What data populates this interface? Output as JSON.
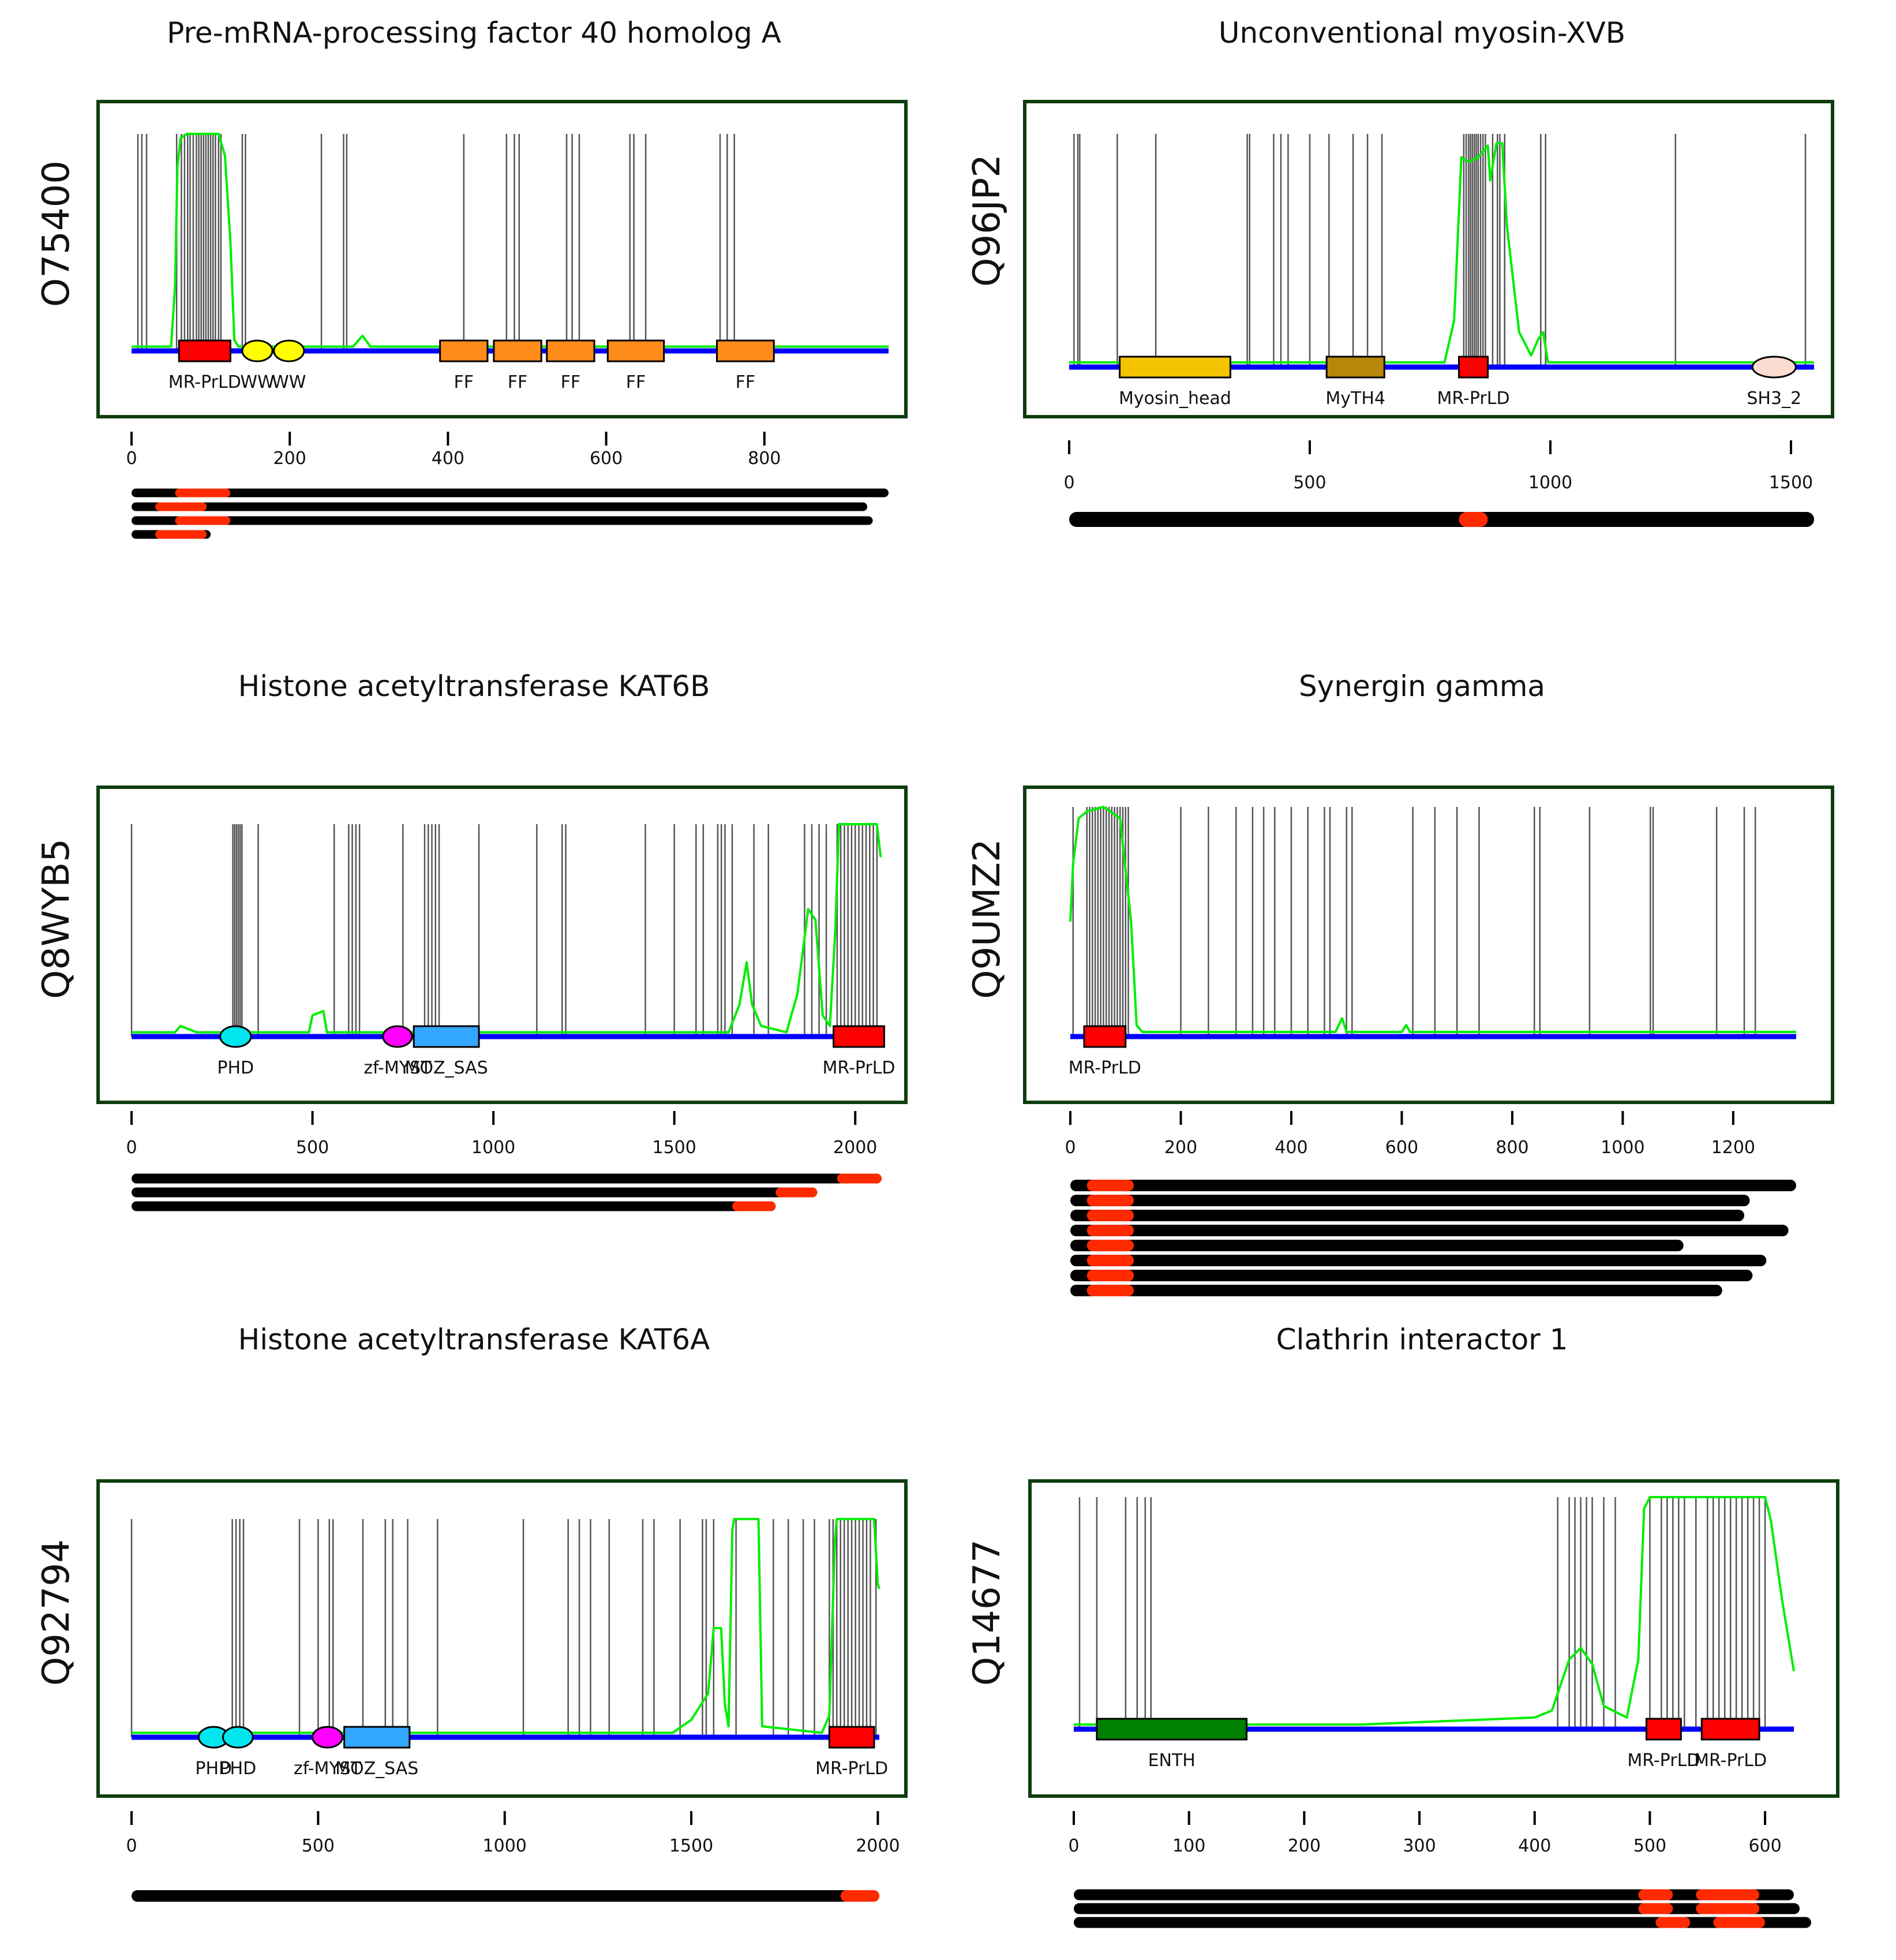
{
  "chart_data": [
    {
      "type": "domain-map",
      "uniprot_id": "O75400",
      "title": "Pre-mRNA-processing factor 40 homolog A",
      "length": 957,
      "xlim": [
        0,
        957
      ],
      "x_ticks": [
        0,
        200,
        400,
        600,
        800
      ],
      "y_range": [
        0,
        1
      ],
      "domains": [
        {
          "label": "MR-PrLD",
          "start": 60,
          "end": 125,
          "shape": "rect",
          "color": "#ff0000"
        },
        {
          "label": "WW",
          "start": 140,
          "end": 178,
          "shape": "ellipse",
          "color": "#ffff00"
        },
        {
          "label": "WW",
          "start": 180,
          "end": 218,
          "shape": "ellipse",
          "color": "#ffff00"
        },
        {
          "label": "FF",
          "start": 390,
          "end": 450,
          "shape": "rect",
          "color": "#ff8c1a"
        },
        {
          "label": "FF",
          "start": 458,
          "end": 518,
          "shape": "rect",
          "color": "#ff8c1a"
        },
        {
          "label": "FF",
          "start": 525,
          "end": 585,
          "shape": "rect",
          "color": "#ff8c1a"
        },
        {
          "label": "FF",
          "start": 602,
          "end": 673,
          "shape": "rect",
          "color": "#ff8c1a"
        },
        {
          "label": "FF",
          "start": 740,
          "end": 812,
          "shape": "rect",
          "color": "#ff8c1a"
        }
      ],
      "prion_score": [
        [
          0,
          0.02
        ],
        [
          50,
          0.02
        ],
        [
          55,
          0.3
        ],
        [
          58,
          0.85
        ],
        [
          62,
          0.98
        ],
        [
          70,
          1.0
        ],
        [
          110,
          1.0
        ],
        [
          118,
          0.9
        ],
        [
          125,
          0.5
        ],
        [
          130,
          0.05
        ],
        [
          135,
          0.02
        ],
        [
          280,
          0.02
        ],
        [
          292,
          0.07
        ],
        [
          302,
          0.02
        ],
        [
          957,
          0.02
        ]
      ],
      "motif_positions": [
        8,
        13,
        19,
        57,
        63,
        67,
        71,
        74,
        78,
        82,
        85,
        88,
        91,
        94,
        97,
        100,
        103,
        106,
        110,
        113,
        140,
        144,
        240,
        268,
        272,
        420,
        474,
        484,
        490,
        550,
        557,
        566,
        630,
        635,
        650,
        744,
        753,
        762
      ],
      "isoforms": [
        {
          "length": 957,
          "prld": [
            [
              55,
              125
            ]
          ]
        },
        {
          "length": 930,
          "prld": [
            [
              30,
              95
            ]
          ]
        },
        {
          "length": 937,
          "prld": [
            [
              55,
              125
            ]
          ]
        },
        {
          "length": 100,
          "prld": [
            [
              30,
              95
            ]
          ]
        }
      ]
    },
    {
      "type": "domain-map",
      "uniprot_id": "Q96JP2",
      "title": "Unconventional myosin-XVB",
      "length": 1548,
      "xlim": [
        0,
        1548
      ],
      "x_ticks": [
        0,
        500,
        1000,
        1500
      ],
      "y_range": [
        0,
        1
      ],
      "domains": [
        {
          "label": "Myosin_head",
          "start": 105,
          "end": 335,
          "shape": "rect",
          "color": "#f5c400"
        },
        {
          "label": "MyTH4",
          "start": 535,
          "end": 655,
          "shape": "rect",
          "color": "#b8860b"
        },
        {
          "label": "MR-PrLD",
          "start": 810,
          "end": 870,
          "shape": "rect",
          "color": "#ff0000"
        },
        {
          "label": "SH3_2",
          "start": 1420,
          "end": 1510,
          "shape": "ellipse",
          "color": "#fcdcd0"
        }
      ],
      "prion_score": [
        [
          0,
          0.02
        ],
        [
          780,
          0.02
        ],
        [
          800,
          0.2
        ],
        [
          815,
          0.9
        ],
        [
          830,
          0.88
        ],
        [
          850,
          0.9
        ],
        [
          870,
          0.95
        ],
        [
          875,
          0.8
        ],
        [
          888,
          0.96
        ],
        [
          900,
          0.96
        ],
        [
          910,
          0.6
        ],
        [
          935,
          0.15
        ],
        [
          960,
          0.05
        ],
        [
          975,
          0.12
        ],
        [
          985,
          0.15
        ],
        [
          995,
          0.02
        ],
        [
          1548,
          0.02
        ]
      ],
      "motif_positions": [
        10,
        18,
        22,
        100,
        180,
        370,
        375,
        425,
        440,
        455,
        500,
        540,
        590,
        620,
        650,
        820,
        825,
        830,
        834,
        838,
        842,
        846,
        850,
        855,
        860,
        865,
        880,
        890,
        895,
        905,
        980,
        990,
        1260,
        1530
      ],
      "isoforms": [
        {
          "length": 1548,
          "prld": [
            [
              810,
              870
            ]
          ]
        }
      ]
    },
    {
      "type": "domain-map",
      "uniprot_id": "Q8WYB5",
      "title": "Histone acetyltransferase KAT6B",
      "length": 2073,
      "xlim": [
        0,
        2073
      ],
      "x_ticks": [
        0,
        500,
        1000,
        1500,
        2000
      ],
      "y_range": [
        0,
        1
      ],
      "domains": [
        {
          "label": "PHD",
          "start": 245,
          "end": 330,
          "shape": "ellipse",
          "color": "#00e5ee"
        },
        {
          "label": "zf-MYST",
          "start": 695,
          "end": 775,
          "shape": "ellipse",
          "color": "#ff00ff"
        },
        {
          "label": "MOZ_SAS",
          "start": 780,
          "end": 960,
          "shape": "rect",
          "color": "#33a6ff"
        },
        {
          "label": "MR-PrLD",
          "start": 1940,
          "end": 2080,
          "shape": "rect",
          "color": "#ff0000"
        }
      ],
      "prion_score": [
        [
          0,
          0.02
        ],
        [
          120,
          0.02
        ],
        [
          135,
          0.05
        ],
        [
          180,
          0.02
        ],
        [
          490,
          0.02
        ],
        [
          500,
          0.1
        ],
        [
          530,
          0.12
        ],
        [
          540,
          0.02
        ],
        [
          1650,
          0.02
        ],
        [
          1680,
          0.15
        ],
        [
          1700,
          0.35
        ],
        [
          1715,
          0.15
        ],
        [
          1740,
          0.05
        ],
        [
          1810,
          0.02
        ],
        [
          1840,
          0.2
        ],
        [
          1870,
          0.6
        ],
        [
          1890,
          0.55
        ],
        [
          1910,
          0.1
        ],
        [
          1930,
          0.05
        ],
        [
          1945,
          0.5
        ],
        [
          1955,
          1.0
        ],
        [
          2060,
          1.0
        ],
        [
          2070,
          0.85
        ],
        [
          2073,
          0.85
        ]
      ],
      "motif_positions": [
        0,
        280,
        285,
        290,
        295,
        300,
        305,
        350,
        560,
        600,
        610,
        620,
        630,
        750,
        810,
        820,
        830,
        840,
        850,
        960,
        1120,
        1190,
        1200,
        1420,
        1500,
        1560,
        1580,
        1620,
        1630,
        1640,
        1660,
        1720,
        1760,
        1860,
        1880,
        1900,
        1920,
        1950,
        1960,
        1970,
        1980,
        1990,
        2000,
        2010,
        2020,
        2030,
        2040,
        2050,
        2060
      ],
      "isoforms": [
        {
          "length": 2073,
          "prld": [
            [
              1950,
              2073
            ]
          ]
        },
        {
          "length": 1895,
          "prld": [
            [
              1780,
              1895
            ]
          ]
        },
        {
          "length": 1780,
          "prld": [
            [
              1660,
              1780
            ]
          ]
        }
      ]
    },
    {
      "type": "domain-map",
      "uniprot_id": "Q9UMZ2",
      "title": "Synergin gamma",
      "length": 1314,
      "xlim": [
        0,
        1314
      ],
      "x_ticks": [
        0,
        200,
        400,
        600,
        800,
        1000,
        1200
      ],
      "y_range": [
        0,
        1
      ],
      "domains": [
        {
          "label": "MR-PrLD",
          "start": 25,
          "end": 100,
          "shape": "rect",
          "color": "#ff0000"
        }
      ],
      "prion_score": [
        [
          0,
          0.5
        ],
        [
          5,
          0.75
        ],
        [
          15,
          0.95
        ],
        [
          30,
          0.98
        ],
        [
          60,
          1.0
        ],
        [
          90,
          0.95
        ],
        [
          110,
          0.5
        ],
        [
          120,
          0.05
        ],
        [
          130,
          0.02
        ],
        [
          480,
          0.02
        ],
        [
          492,
          0.08
        ],
        [
          500,
          0.02
        ],
        [
          600,
          0.02
        ],
        [
          608,
          0.05
        ],
        [
          615,
          0.02
        ],
        [
          1314,
          0.02
        ]
      ],
      "motif_positions": [
        5,
        30,
        35,
        40,
        45,
        50,
        55,
        60,
        65,
        70,
        75,
        80,
        85,
        90,
        95,
        100,
        105,
        200,
        250,
        300,
        330,
        350,
        370,
        400,
        430,
        460,
        470,
        500,
        510,
        620,
        660,
        700,
        740,
        840,
        850,
        940,
        1050,
        1055,
        1170,
        1220,
        1240
      ],
      "isoforms": [
        {
          "length": 1314,
          "prld": [
            [
              30,
              115
            ]
          ]
        },
        {
          "length": 1230,
          "prld": [
            [
              30,
              115
            ]
          ]
        },
        {
          "length": 1220,
          "prld": [
            [
              30,
              115
            ]
          ]
        },
        {
          "length": 1300,
          "prld": [
            [
              30,
              115
            ]
          ]
        },
        {
          "length": 1110,
          "prld": [
            [
              30,
              115
            ]
          ]
        },
        {
          "length": 1260,
          "prld": [
            [
              30,
              115
            ]
          ]
        },
        {
          "length": 1235,
          "prld": [
            [
              30,
              115
            ]
          ]
        },
        {
          "length": 1180,
          "prld": [
            [
              30,
              115
            ]
          ]
        }
      ]
    },
    {
      "type": "domain-map",
      "uniprot_id": "Q92794",
      "title": "Histone acetyltransferase KAT6A",
      "length": 2004,
      "xlim": [
        0,
        2004
      ],
      "x_ticks": [
        0,
        500,
        1000,
        1500,
        2000
      ],
      "y_range": [
        0,
        1
      ],
      "domains": [
        {
          "label": "PHD",
          "start": 180,
          "end": 260,
          "shape": "ellipse",
          "color": "#00e5ee"
        },
        {
          "label": "PHD",
          "start": 245,
          "end": 325,
          "shape": "ellipse",
          "color": "#00e5ee"
        },
        {
          "label": "zf-MYST",
          "start": 485,
          "end": 565,
          "shape": "ellipse",
          "color": "#ff00ff"
        },
        {
          "label": "MOZ_SAS",
          "start": 570,
          "end": 745,
          "shape": "rect",
          "color": "#33a6ff"
        },
        {
          "label": "MR-PrLD",
          "start": 1870,
          "end": 1990,
          "shape": "rect",
          "color": "#ff0000"
        }
      ],
      "prion_score": [
        [
          0,
          0.02
        ],
        [
          1450,
          0.02
        ],
        [
          1500,
          0.08
        ],
        [
          1545,
          0.2
        ],
        [
          1560,
          0.5
        ],
        [
          1580,
          0.5
        ],
        [
          1590,
          0.15
        ],
        [
          1600,
          0.05
        ],
        [
          1610,
          0.95
        ],
        [
          1615,
          1.0
        ],
        [
          1680,
          1.0
        ],
        [
          1690,
          0.05
        ],
        [
          1850,
          0.02
        ],
        [
          1870,
          0.1
        ],
        [
          1885,
          0.9
        ],
        [
          1890,
          1.0
        ],
        [
          1990,
          1.0
        ],
        [
          2000,
          0.7
        ],
        [
          2004,
          0.68
        ]
      ],
      "motif_positions": [
        0,
        270,
        280,
        290,
        300,
        450,
        500,
        530,
        540,
        620,
        680,
        700,
        740,
        820,
        1050,
        1170,
        1200,
        1230,
        1280,
        1370,
        1400,
        1470,
        1530,
        1540,
        1560,
        1620,
        1720,
        1760,
        1800,
        1830,
        1870,
        1880,
        1890,
        1900,
        1910,
        1920,
        1930,
        1940,
        1950,
        1960,
        1970,
        1980,
        1995
      ],
      "isoforms": [
        {
          "length": 2004,
          "prld": [
            [
              1900,
              2004
            ]
          ]
        }
      ]
    },
    {
      "type": "domain-map",
      "uniprot_id": "Q14677",
      "title": "Clathrin interactor 1",
      "length": 625,
      "xlim": [
        0,
        625
      ],
      "x_ticks": [
        0,
        100,
        200,
        300,
        400,
        500,
        600
      ],
      "y_range": [
        0,
        1
      ],
      "domains": [
        {
          "label": "ENTH",
          "start": 20,
          "end": 150,
          "shape": "rect",
          "color": "#008000"
        },
        {
          "label": "MR-PrLD",
          "start": 497,
          "end": 527,
          "shape": "rect",
          "color": "#ff0000"
        },
        {
          "label": "MR-PrLD",
          "start": 545,
          "end": 595,
          "shape": "rect",
          "color": "#ff0000"
        }
      ],
      "prion_score": [
        [
          0,
          0.02
        ],
        [
          250,
          0.02
        ],
        [
          300,
          0.03
        ],
        [
          400,
          0.05
        ],
        [
          415,
          0.08
        ],
        [
          430,
          0.3
        ],
        [
          440,
          0.35
        ],
        [
          450,
          0.28
        ],
        [
          460,
          0.1
        ],
        [
          480,
          0.05
        ],
        [
          490,
          0.3
        ],
        [
          495,
          0.95
        ],
        [
          500,
          1.0
        ],
        [
          600,
          1.0
        ],
        [
          605,
          0.9
        ],
        [
          615,
          0.55
        ],
        [
          625,
          0.25
        ]
      ],
      "motif_positions": [
        5,
        20,
        45,
        55,
        62,
        67,
        420,
        430,
        435,
        440,
        445,
        450,
        460,
        470,
        500,
        510,
        515,
        520,
        525,
        530,
        540,
        550,
        555,
        560,
        565,
        570,
        575,
        580,
        585,
        590,
        595,
        600
      ],
      "isoforms": [
        {
          "length": 625,
          "prld": [
            [
              490,
              520
            ],
            [
              540,
              595
            ]
          ]
        },
        {
          "length": 630,
          "prld": [
            [
              490,
              520
            ],
            [
              540,
              595
            ]
          ]
        },
        {
          "length": 640,
          "prld": [
            [
              505,
              535
            ],
            [
              555,
              600
            ]
          ]
        }
      ]
    }
  ],
  "colors": {
    "frame": "#0e3d0e",
    "backbone": "#0000ff",
    "prion_line": "#00ee00",
    "motif_line": "#555555",
    "isoform_bar": "#000000",
    "prld_highlight": "#ff2a00"
  }
}
